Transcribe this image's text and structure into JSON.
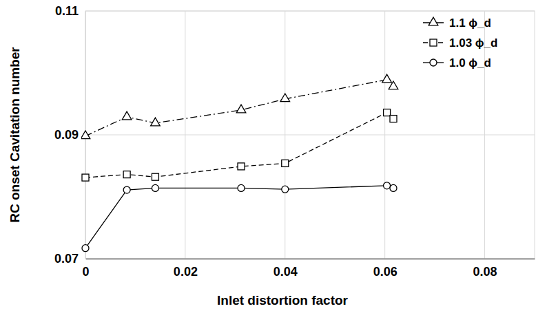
{
  "chart_data": {
    "type": "line",
    "x_label": "Inlet distortion factor",
    "y_label": "RC onset Cavitation number",
    "x": [
      0,
      0.0083,
      0.014,
      0.0312,
      0.04,
      0.0604,
      0.0617
    ],
    "series": [
      {
        "name": "1.1 ϕ_d",
        "color": "#000000",
        "marker": "triangle",
        "line_style": "dashdot",
        "values": [
          0.0898,
          0.0929,
          0.0919,
          0.094,
          0.0958,
          0.0989,
          0.0978
        ]
      },
      {
        "name": "1.03 ϕ_d",
        "color": "#000000",
        "marker": "square",
        "line_style": "dashed",
        "values": [
          0.0831,
          0.0836,
          0.0832,
          0.0849,
          0.0854,
          0.0936,
          0.0926
        ]
      },
      {
        "name": "1.0 ϕ_d",
        "color": "#000000",
        "marker": "circle",
        "line_style": "solid",
        "values": [
          0.0717,
          0.0811,
          0.0814,
          0.0814,
          0.0812,
          0.0818,
          0.0814
        ]
      }
    ],
    "xlim": [
      0,
      0.09
    ],
    "xticks": [
      0,
      0.02,
      0.04,
      0.06,
      0.08
    ],
    "ylim": [
      0.07,
      0.11
    ],
    "yticks": [
      0.07,
      0.09,
      0.11
    ],
    "grid": true,
    "legend": "upper right"
  }
}
